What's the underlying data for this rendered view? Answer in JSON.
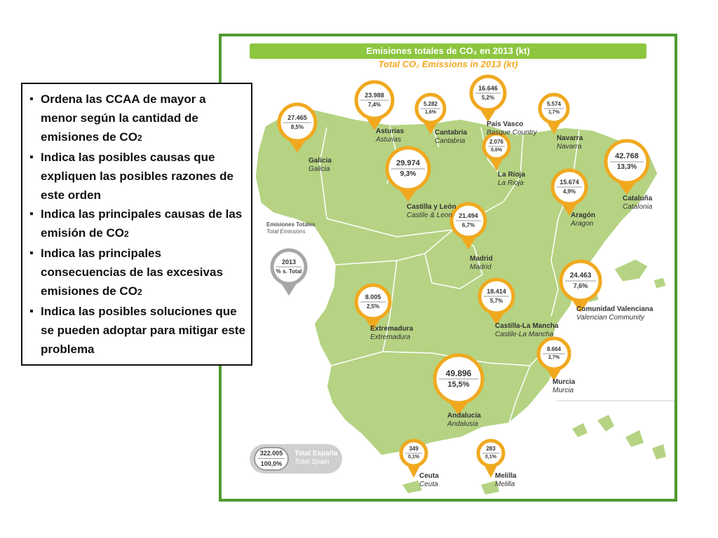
{
  "map": {
    "title_es": "Emisiones totales de CO₂ en 2013 (kt)",
    "title_en": "Total CO₂ Emissions in 2013 (kt)",
    "colors": {
      "land": "#b5d383",
      "border": "#ffffff",
      "accent": "#f0a91f",
      "frame": "#4f9a2e",
      "banner": "#8dc63f"
    },
    "regions": [
      {
        "id": "galicia",
        "value": "27.465",
        "pct": "8,5%",
        "es": "Galicia",
        "en": "Galicia"
      },
      {
        "id": "asturias",
        "value": "23.988",
        "pct": "7,4%",
        "es": "Asturias",
        "en": "Asturias"
      },
      {
        "id": "cantabria",
        "value": "5.282",
        "pct": "1,6%",
        "es": "Cantabria",
        "en": "Cantabria"
      },
      {
        "id": "pais-vasco",
        "value": "16.646",
        "pct": "5,2%",
        "es": "País Vasco",
        "en": "Basque Country"
      },
      {
        "id": "navarra",
        "value": "5.574",
        "pct": "1,7%",
        "es": "Navarra",
        "en": "Navarra"
      },
      {
        "id": "la-rioja",
        "value": "2.076",
        "pct": "0,6%",
        "es": "La Rioja",
        "en": "La Rioja"
      },
      {
        "id": "cataluna",
        "value": "42.768",
        "pct": "13,3%",
        "es": "Cataluña",
        "en": "Catalonia"
      },
      {
        "id": "castilla-leon",
        "value": "29.974",
        "pct": "9,3%",
        "es": "Castilla y León",
        "en": "Castile & Leon"
      },
      {
        "id": "aragon",
        "value": "15.674",
        "pct": "4,9%",
        "es": "Aragón",
        "en": "Aragon"
      },
      {
        "id": "madrid",
        "value": "21.494",
        "pct": "6,7%",
        "es": "Madrid",
        "en": "Madrid"
      },
      {
        "id": "valenciana",
        "value": "24.463",
        "pct": "7,6%",
        "es": "Comunidad Valenciana",
        "en": "Valencian Community"
      },
      {
        "id": "extremadura",
        "value": "8.005",
        "pct": "2,5%",
        "es": "Extremadura",
        "en": "Extremadura"
      },
      {
        "id": "castilla-mancha",
        "value": "18.414",
        "pct": "5,7%",
        "es": "Castilla-La Mancha",
        "en": "Castile-La Mancha"
      },
      {
        "id": "murcia",
        "value": "8.664",
        "pct": "2,7%",
        "es": "Murcia",
        "en": "Murcia"
      },
      {
        "id": "andalucia",
        "value": "49.896",
        "pct": "15,5%",
        "es": "Andalucía",
        "en": "Andalusia"
      },
      {
        "id": "ceuta",
        "value": "349",
        "pct": "0,1%",
        "es": "Ceuta",
        "en": "Ceuta"
      },
      {
        "id": "melilla",
        "value": "283",
        "pct": "0,1%",
        "es": "Melilla",
        "en": "Melilla"
      }
    ],
    "legend": {
      "title_es": "Emisiones Totales",
      "title_en": "Total Emissions",
      "year": "2013",
      "pct_label": "% s. Total"
    },
    "total": {
      "value": "322.005",
      "pct": "100,0%",
      "es": "Total España",
      "en": "Total Spain"
    }
  },
  "questions": {
    "items": [
      {
        "pre": "Ordena las CCAA de mayor a menor según la cantidad de emisiones  de CO",
        "sub": "2",
        "post": ""
      },
      {
        "pre": "Indica las posibles causas que expliquen las posibles razones de este orden",
        "sub": "",
        "post": ""
      },
      {
        "pre": "Indica las principales causas de las emisión de CO",
        "sub": "2",
        "post": ""
      },
      {
        "pre": "Indica las principales consecuencias de las excesivas emisiones de CO",
        "sub": "2",
        "post": ""
      },
      {
        "pre": "Indica las posibles soluciones que se pueden adoptar para mitigar este problema",
        "sub": "",
        "post": ""
      }
    ]
  }
}
